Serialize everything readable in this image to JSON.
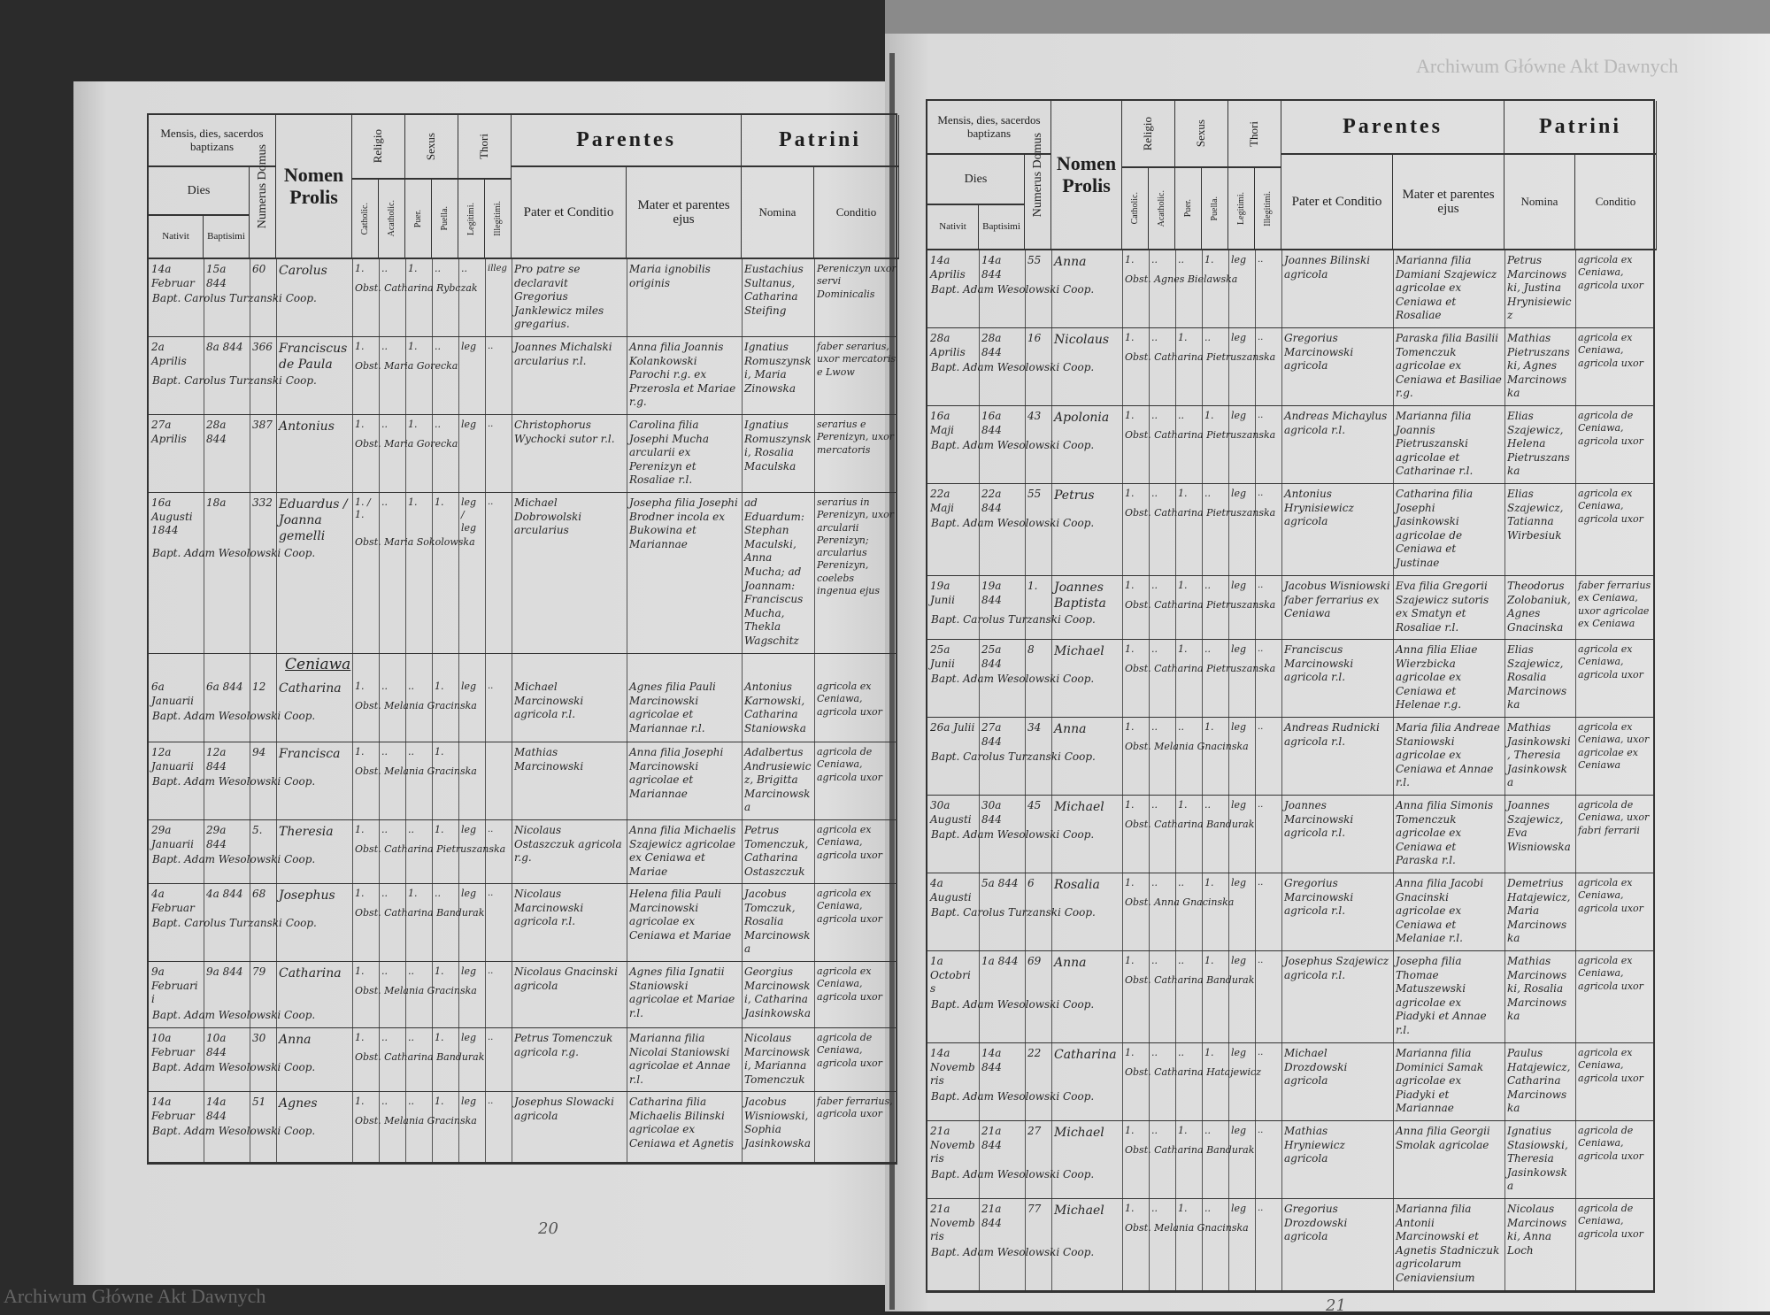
{
  "header": {
    "mensis": "Mensis, dies, sacerdos baptizans",
    "dies": "Dies",
    "nativit": "Nativit",
    "baptisimi": "Baptisimi",
    "numerus_domus": "Numerus Domus",
    "nomen_prolis": "Nomen Prolis",
    "religio": "Religio",
    "catholic": "Catholic.",
    "acatholic": "Acatholic.",
    "sexus": "Sexus",
    "puer": "Puer.",
    "puella": "Puella.",
    "thori": "Thori",
    "legitimi": "Legitimi.",
    "illegitimi": "Illegitimi.",
    "parentes": "Parentes",
    "pater": "Pater et Conditio",
    "mater": "Mater et parentes ejus",
    "patrini": "Patrini",
    "nomina": "Nomina",
    "conditio": "Conditio"
  },
  "left_page": {
    "page_number": "20",
    "watermark": "Archiwum Główne Akt Dawnych",
    "rows": [
      {
        "nativit": "14a Februar",
        "baptisimi": "15a 844",
        "domus": "60",
        "prolis": "Carolus",
        "catholic": "1.",
        "acatholic": "..",
        "puer": "1.",
        "puella": "..",
        "legitimi": "..",
        "illegitimi": "illeg",
        "obstetrix": "Obst. Catharina Rybczak",
        "pater": "Pro patre se declaravit Gregorius Janklewicz miles gregarius.",
        "mater": "Maria ignobilis originis",
        "patrini": "Eustachius Sultanus, Catharina Steifing",
        "conditio": "Pereniczyn uxor servi Dominicalis",
        "baptizans": "Bapt. Carolus Turzanski Coop."
      },
      {
        "nativit": "2a Aprilis",
        "baptisimi": "8a 844",
        "domus": "366",
        "prolis": "Franciscus de Paula",
        "catholic": "1.",
        "acatholic": "..",
        "puer": "1.",
        "puella": "..",
        "legitimi": "leg",
        "illegitimi": "..",
        "obstetrix": "Obst. Maria Gorecka",
        "pater": "Joannes Michalski arcularius r.l.",
        "mater": "Anna filia Joannis Kolankowski Parochi r.g. ex Przerosla et Mariae r.g.",
        "patrini": "Ignatius Romuszynski, Maria Zinowska",
        "conditio": "faber serarius, uxor mercatoris e Lwow",
        "baptizans": "Bapt. Carolus Turzanski Coop."
      },
      {
        "nativit": "27a Aprilis",
        "baptisimi": "28a 844",
        "domus": "387",
        "prolis": "Antonius",
        "catholic": "1.",
        "acatholic": "..",
        "puer": "1.",
        "puella": "..",
        "legitimi": "leg",
        "illegitimi": "..",
        "obstetrix": "Obst. Maria Gorecka",
        "pater": "Christophorus Wychocki sutor r.l.",
        "mater": "Carolina filia Josephi Mucha arcularii ex Perenizyn et Rosaliae r.l.",
        "patrini": "Ignatius Romuszynski, Rosalia Maculska",
        "conditio": "serarius e Perenizyn, uxor mercatoris",
        "baptizans": ""
      },
      {
        "nativit": "16a Augusti 1844",
        "baptisimi": "18a",
        "domus": "332",
        "prolis": "Eduardus / Joanna gemelli",
        "catholic": "1. / 1.",
        "acatholic": "..",
        "puer": "1.",
        "puella": "1.",
        "legitimi": "leg / leg",
        "illegitimi": "..",
        "obstetrix": "Obst. Maria Sokolowska",
        "pater": "Michael Dobrowolski arcularius",
        "mater": "Josepha filia Josephi Brodner incola ex Bukowina et Mariannae",
        "patrini": "ad Eduardum: Stephan Maculski, Anna Mucha; ad Joannam: Franciscus Mucha, Thekla Wagschitz",
        "conditio": "serarius in Perenizyn, uxor arcularii Perenizyn; arcularius Perenizyn, coelebs ingenua ejus",
        "baptizans": "Bapt. Adam Wesolowski Coop."
      },
      {
        "section": "Ceniawa",
        "nativit": "6a Januarii",
        "baptisimi": "6a 844",
        "domus": "12",
        "prolis": "Catharina",
        "catholic": "1.",
        "acatholic": "..",
        "puer": "..",
        "puella": "1.",
        "legitimi": "leg",
        "illegitimi": "..",
        "obstetrix": "Obst. Melania Gracinska",
        "pater": "Michael Marcinowski agricola r.l.",
        "mater": "Agnes filia Pauli Marcinowski agricolae et Mariannae r.l.",
        "patrini": "Antonius Karnowski, Catharina Staniowska",
        "conditio": "agricola ex Ceniawa, agricola uxor",
        "baptizans": "Bapt. Adam Wesolowski Coop."
      },
      {
        "nativit": "12a Januarii",
        "baptisimi": "12a 844",
        "domus": "94",
        "prolis": "Francisca",
        "catholic": "1.",
        "acatholic": "..",
        "puer": "..",
        "puella": "1.",
        "legitimi": "",
        "illegitimi": "",
        "obstetrix": "Obst. Melania Gracinska",
        "pater": "Mathias Marcinowski",
        "mater": "Anna filia Josephi Marcinowski agricolae et Mariannae",
        "patrini": "Adalbertus Andrusiewicz, Brigitta Marcinowska",
        "conditio": "agricola de Ceniawa, agricola uxor",
        "baptizans": "Bapt. Adam Wesolowski Coop."
      },
      {
        "nativit": "29a Januarii",
        "baptisimi": "29a 844",
        "domus": "5.",
        "prolis": "Theresia",
        "catholic": "1.",
        "acatholic": "..",
        "puer": "..",
        "puella": "1.",
        "legitimi": "leg",
        "illegitimi": "..",
        "obstetrix": "Obst. Catharina Pietruszanska",
        "pater": "Nicolaus Ostaszczuk agricola r.g.",
        "mater": "Anna filia Michaelis Szajewicz agricolae ex Ceniawa et Mariae",
        "patrini": "Petrus Tomenczuk, Catharina Ostaszczuk",
        "conditio": "agricola ex Ceniawa, agricola uxor",
        "baptizans": "Bapt. Adam Wesolowski Coop."
      },
      {
        "nativit": "4a Februar",
        "baptisimi": "4a 844",
        "domus": "68",
        "prolis": "Josephus",
        "catholic": "1.",
        "acatholic": "..",
        "puer": "1.",
        "puella": "..",
        "legitimi": "leg",
        "illegitimi": "..",
        "obstetrix": "Obst. Catharina Bandurak",
        "pater": "Nicolaus Marcinowski agricola r.l.",
        "mater": "Helena filia Pauli Marcinowski agricolae ex Ceniawa et Mariae",
        "patrini": "Jacobus Tomczuk, Rosalia Marcinowska",
        "conditio": "agricola ex Ceniawa, agricola uxor",
        "baptizans": "Bapt. Carolus Turzanski Coop."
      },
      {
        "nativit": "9a Februarii",
        "baptisimi": "9a 844",
        "domus": "79",
        "prolis": "Catharina",
        "catholic": "1.",
        "acatholic": "..",
        "puer": "..",
        "puella": "1.",
        "legitimi": "leg",
        "illegitimi": "..",
        "obstetrix": "Obst. Melania Gracinska",
        "pater": "Nicolaus Gnacinski agricola",
        "mater": "Agnes filia Ignatii Staniowski agricolae et Mariae r.l.",
        "patrini": "Georgius Marcinowski, Catharina Jasinkowska",
        "conditio": "agricola ex Ceniawa, agricola uxor",
        "baptizans": "Bapt. Adam Wesolowski Coop."
      },
      {
        "nativit": "10a Februar",
        "baptisimi": "10a 844",
        "domus": "30",
        "prolis": "Anna",
        "catholic": "1.",
        "acatholic": "..",
        "puer": "..",
        "puella": "1.",
        "legitimi": "leg",
        "illegitimi": "..",
        "obstetrix": "Obst. Catharina Bandurak",
        "pater": "Petrus Tomenczuk agricola r.g.",
        "mater": "Marianna filia Nicolai Staniowski agricolae et Annae r.l.",
        "patrini": "Nicolaus Marcinowski, Marianna Tomenczuk",
        "conditio": "agricola de Ceniawa, agricola uxor",
        "baptizans": "Bapt. Adam Wesolowski Coop."
      },
      {
        "nativit": "14a Februar",
        "baptisimi": "14a 844",
        "domus": "51",
        "prolis": "Agnes",
        "catholic": "1.",
        "acatholic": "..",
        "puer": "..",
        "puella": "1.",
        "legitimi": "leg",
        "illegitimi": "..",
        "obstetrix": "Obst. Melania Gracinska",
        "pater": "Josephus Slowacki agricola",
        "mater": "Catharina filia Michaelis Bilinski agricolae ex Ceniawa et Agnetis",
        "patrini": "Jacobus Wisniowski, Sophia Jasinkowska",
        "conditio": "faber ferrarius, agricola uxor",
        "baptizans": "Bapt. Adam Wesolowski Coop."
      }
    ]
  },
  "right_page": {
    "page_number": "21",
    "watermark": "Archiwum Główne Akt Dawnych",
    "rows": [
      {
        "nativit": "14a Aprilis",
        "baptisimi": "14a 844",
        "domus": "55",
        "prolis": "Anna",
        "catholic": "1.",
        "acatholic": "..",
        "puer": "..",
        "puella": "1.",
        "legitimi": "leg",
        "illegitimi": "..",
        "obstetrix": "Obst. Agnes Bielawska",
        "pater": "Joannes Bilinski agricola",
        "mater": "Marianna filia Damiani Szajewicz agricolae ex Ceniawa et Rosaliae",
        "patrini": "Petrus Marcinowski, Justina Hrynisiewicz",
        "conditio": "agricola ex Ceniawa, agricola uxor",
        "baptizans": "Bapt. Adam Wesolowski Coop."
      },
      {
        "nativit": "28a Aprilis",
        "baptisimi": "28a 844",
        "domus": "16",
        "prolis": "Nicolaus",
        "catholic": "1.",
        "acatholic": "..",
        "puer": "1.",
        "puella": "..",
        "legitimi": "leg",
        "illegitimi": "..",
        "obstetrix": "Obst. Catharina Pietruszanska",
        "pater": "Gregorius Marcinowski agricola",
        "mater": "Paraska filia Basilii Tomenczuk agricolae ex Ceniawa et Basiliae r.g.",
        "patrini": "Mathias Pietruszanski, Agnes Marcinowska",
        "conditio": "agricola ex Ceniawa, agricola uxor",
        "baptizans": "Bapt. Adam Wesolowski Coop."
      },
      {
        "nativit": "16a Maji",
        "baptisimi": "16a 844",
        "domus": "43",
        "prolis": "Apolonia",
        "catholic": "1.",
        "acatholic": "..",
        "puer": "..",
        "puella": "1.",
        "legitimi": "leg",
        "illegitimi": "..",
        "obstetrix": "Obst. Catharina Pietruszanska",
        "pater": "Andreas Michaylus agricola r.l.",
        "mater": "Marianna filia Joannis Pietruszanski agricolae et Catharinae r.l.",
        "patrini": "Elias Szajewicz, Helena Pietruszanska",
        "conditio": "agricola de Ceniawa, agricola uxor",
        "baptizans": "Bapt. Adam Wesolowski Coop."
      },
      {
        "nativit": "22a Maji",
        "baptisimi": "22a 844",
        "domus": "55",
        "prolis": "Petrus",
        "catholic": "1.",
        "acatholic": "..",
        "puer": "1.",
        "puella": "..",
        "legitimi": "leg",
        "illegitimi": "..",
        "obstetrix": "Obst. Catharina Pietruszanska",
        "pater": "Antonius Hrynisiewicz agricola",
        "mater": "Catharina filia Josephi Jasinkowski agricolae de Ceniawa et Justinae",
        "patrini": "Elias Szajewicz, Tatianna Wirbesiuk",
        "conditio": "agricola ex Ceniawa, agricola uxor",
        "baptizans": "Bapt. Adam Wesolowski Coop."
      },
      {
        "nativit": "19a Junii",
        "baptisimi": "19a 844",
        "domus": "1.",
        "prolis": "Joannes Baptista",
        "catholic": "1.",
        "acatholic": "..",
        "puer": "1.",
        "puella": "..",
        "legitimi": "leg",
        "illegitimi": "..",
        "obstetrix": "Obst. Catharina Pietruszanska",
        "pater": "Jacobus Wisniowski faber ferrarius ex Ceniawa",
        "mater": "Eva filia Gregorii Szajewicz sutoris ex Smatyn et Rosaliae r.l.",
        "patrini": "Theodorus Zolobaniuk, Agnes Gnacinska",
        "conditio": "faber ferrarius ex Ceniawa, uxor agricolae ex Ceniawa",
        "baptizans": "Bapt. Carolus Turzanski Coop."
      },
      {
        "nativit": "25a Junii",
        "baptisimi": "25a 844",
        "domus": "8",
        "prolis": "Michael",
        "catholic": "1.",
        "acatholic": "..",
        "puer": "1.",
        "puella": "..",
        "legitimi": "leg",
        "illegitimi": "..",
        "obstetrix": "Obst. Catharina Pietruszanska",
        "pater": "Franciscus Marcinowski agricola r.l.",
        "mater": "Anna filia Eliae Wierzbicka agricolae ex Ceniawa et Helenae r.g.",
        "patrini": "Elias Szajewicz, Rosalia Marcinowska",
        "conditio": "agricola ex Ceniawa, agricola uxor",
        "baptizans": "Bapt. Adam Wesolowski Coop."
      },
      {
        "nativit": "26a Julii",
        "baptisimi": "27a 844",
        "domus": "34",
        "prolis": "Anna",
        "catholic": "1.",
        "acatholic": "..",
        "puer": "..",
        "puella": "1.",
        "legitimi": "leg",
        "illegitimi": "..",
        "obstetrix": "Obst. Melania Gnacinska",
        "pater": "Andreas Rudnicki agricola r.l.",
        "mater": "Maria filia Andreae Staniowski agricolae ex Ceniawa et Annae r.l.",
        "patrini": "Mathias Jasinkowski, Theresia Jasinkowska",
        "conditio": "agricola ex Ceniawa, uxor agricolae ex Ceniawa",
        "baptizans": "Bapt. Carolus Turzanski Coop."
      },
      {
        "nativit": "30a Augusti",
        "baptisimi": "30a 844",
        "domus": "45",
        "prolis": "Michael",
        "catholic": "1.",
        "acatholic": "..",
        "puer": "1.",
        "puella": "..",
        "legitimi": "leg",
        "illegitimi": "..",
        "obstetrix": "Obst. Catharina Bandurak",
        "pater": "Joannes Marcinowski agricola r.l.",
        "mater": "Anna filia Simonis Tomenczuk agricolae ex Ceniawa et Paraska r.l.",
        "patrini": "Joannes Szajewicz, Eva Wisniowska",
        "conditio": "agricola de Ceniawa, uxor fabri ferrarii",
        "baptizans": "Bapt. Adam Wesolowski Coop."
      },
      {
        "nativit": "4a Augusti",
        "baptisimi": "5a 844",
        "domus": "6",
        "prolis": "Rosalia",
        "catholic": "1.",
        "acatholic": "..",
        "puer": "..",
        "puella": "1.",
        "legitimi": "leg",
        "illegitimi": "..",
        "obstetrix": "Obst. Anna Gnacinska",
        "pater": "Gregorius Marcinowski agricola r.l.",
        "mater": "Anna filia Jacobi Gnacinski agricolae ex Ceniawa et Melaniae r.l.",
        "patrini": "Demetrius Hatajewicz, Maria Marcinowska",
        "conditio": "agricola ex Ceniawa, agricola uxor",
        "baptizans": "Bapt. Carolus Turzanski Coop."
      },
      {
        "nativit": "1a Octobris",
        "baptisimi": "1a 844",
        "domus": "69",
        "prolis": "Anna",
        "catholic": "1.",
        "acatholic": "..",
        "puer": "..",
        "puella": "1.",
        "legitimi": "leg",
        "illegitimi": "..",
        "obstetrix": "Obst. Catharina Bandurak",
        "pater": "Josephus Szajewicz agricola r.l.",
        "mater": "Josepha filia Thomae Matuszewski agricolae ex Piadyki et Annae r.l.",
        "patrini": "Mathias Marcinowski, Rosalia Marcinowska",
        "conditio": "agricola ex Ceniawa, agricola uxor",
        "baptizans": "Bapt. Adam Wesolowski Coop."
      },
      {
        "nativit": "14a Novembris",
        "baptisimi": "14a 844",
        "domus": "22",
        "prolis": "Catharina",
        "catholic": "1.",
        "acatholic": "..",
        "puer": "..",
        "puella": "1.",
        "legitimi": "leg",
        "illegitimi": "..",
        "obstetrix": "Obst. Catharina Hatajewicz",
        "pater": "Michael Drozdowski agricola",
        "mater": "Marianna filia Dominici Samak agricolae ex Piadyki et Mariannae",
        "patrini": "Paulus Hatajewicz, Catharina Marcinowska",
        "conditio": "agricola ex Ceniawa, agricola uxor",
        "baptizans": "Bapt. Adam Wesolowski Coop."
      },
      {
        "nativit": "21a Novembris",
        "baptisimi": "21a 844",
        "domus": "27",
        "prolis": "Michael",
        "catholic": "1.",
        "acatholic": "..",
        "puer": "1.",
        "puella": "..",
        "legitimi": "leg",
        "illegitimi": "..",
        "obstetrix": "Obst. Catharina Bandurak",
        "pater": "Mathias Hryniewicz agricola",
        "mater": "Anna filia Georgii Smolak agricolae",
        "patrini": "Ignatius Stasiowski, Theresia Jasinkowska",
        "conditio": "agricola de Ceniawa, agricola uxor",
        "baptizans": "Bapt. Adam Wesolowski Coop."
      },
      {
        "nativit": "21a Novembris",
        "baptisimi": "21a 844",
        "domus": "77",
        "prolis": "Michael",
        "catholic": "1.",
        "acatholic": "..",
        "puer": "1.",
        "puella": "..",
        "legitimi": "leg",
        "illegitimi": "..",
        "obstetrix": "Obst. Melania Gnacinska",
        "pater": "Gregorius Drozdowski agricola",
        "mater": "Marianna filia Antonii Marcinowski et Agnetis Stadniczuk agricolarum Ceniaviensium",
        "patrini": "Nicolaus Marcinowski, Anna Loch",
        "conditio": "agricola de Ceniawa, agricola uxor",
        "baptizans": "Bapt. Adam Wesolowski Coop."
      }
    ]
  }
}
